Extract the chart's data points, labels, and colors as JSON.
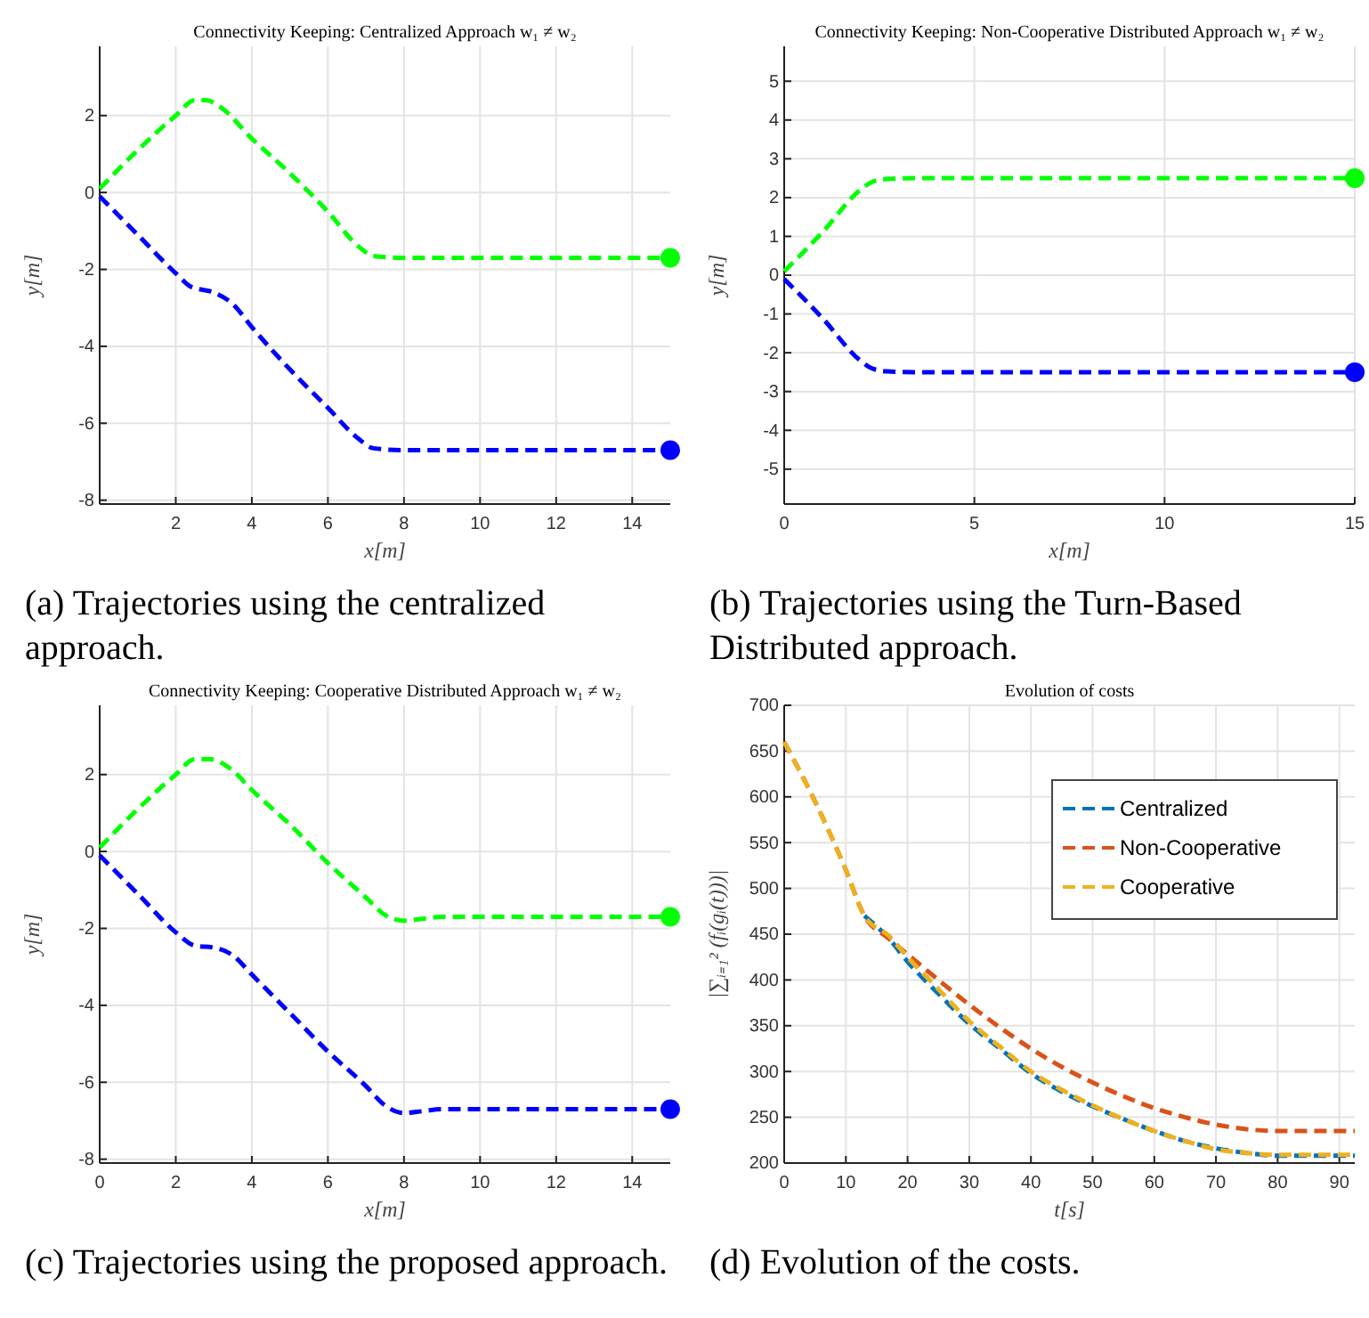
{
  "chart_data": [
    {
      "type": "line",
      "title": "Connectivity Keeping: Centralized Approach w₁ ≠ w₂",
      "xlabel": "x[m]",
      "ylabel": "y[m]",
      "xlim": [
        0,
        15
      ],
      "ylim": [
        -8.1,
        3.8
      ],
      "xticks": [
        2,
        4,
        6,
        8,
        10,
        12,
        14
      ],
      "yticks": [
        -8,
        -6,
        -4,
        -2,
        0,
        2
      ],
      "grid": true,
      "line_style": "dashed",
      "annotations": [
        "(a) Trajectories using the centralized approach."
      ],
      "series": [
        {
          "color": "#00ff00",
          "x": [
            0,
            1,
            2,
            2.5,
            2.8,
            3.2,
            4,
            5,
            6,
            6.8,
            7.2,
            8,
            15
          ],
          "values": [
            0.1,
            1.1,
            2.0,
            2.4,
            2.4,
            2.2,
            1.4,
            0.5,
            -0.5,
            -1.4,
            -1.65,
            -1.7,
            -1.7
          ]
        },
        {
          "color": "#0000ff",
          "x": [
            0,
            1,
            2,
            2.4,
            3,
            3.5,
            4,
            5,
            6,
            6.8,
            7.2,
            8,
            15
          ],
          "values": [
            -0.1,
            -1.1,
            -2.1,
            -2.45,
            -2.6,
            -2.9,
            -3.5,
            -4.6,
            -5.6,
            -6.4,
            -6.65,
            -6.7,
            -6.7
          ]
        },
        {
          "type": "scatter",
          "marker": "circle",
          "color": "#00ff00",
          "x": [
            15
          ],
          "values": [
            -1.7
          ]
        },
        {
          "type": "scatter",
          "marker": "circle",
          "color": "#0000ff",
          "x": [
            15
          ],
          "values": [
            -6.7
          ]
        }
      ]
    },
    {
      "type": "line",
      "title": "Connectivity Keeping: Non-Cooperative Distributed Approach w₁ ≠ w₂",
      "xlabel": "x[m]",
      "ylabel": "y[m]",
      "xlim": [
        0,
        15
      ],
      "ylim": [
        -5.9,
        5.9
      ],
      "xticks": [
        0,
        5,
        10,
        15
      ],
      "yticks": [
        -5,
        -4,
        -3,
        -2,
        -1,
        0,
        1,
        2,
        3,
        4,
        5
      ],
      "grid": true,
      "line_style": "dashed",
      "annotations": [
        "(b) Trajectories using the Turn-Based Distributed approach."
      ],
      "series": [
        {
          "color": "#00ff00",
          "x": [
            0,
            1,
            2,
            2.3,
            2.7,
            3.5,
            15
          ],
          "values": [
            0.1,
            1.1,
            2.2,
            2.4,
            2.48,
            2.5,
            2.5
          ]
        },
        {
          "color": "#0000ff",
          "x": [
            0,
            1,
            2,
            2.3,
            2.7,
            3.5,
            15
          ],
          "values": [
            -0.1,
            -1.1,
            -2.2,
            -2.4,
            -2.48,
            -2.5,
            -2.5
          ]
        },
        {
          "type": "scatter",
          "marker": "circle",
          "color": "#00ff00",
          "x": [
            15
          ],
          "values": [
            2.5
          ]
        },
        {
          "type": "scatter",
          "marker": "circle",
          "color": "#0000ff",
          "x": [
            15
          ],
          "values": [
            -2.5
          ]
        }
      ]
    },
    {
      "type": "line",
      "title": "Connectivity Keeping: Cooperative Distributed Approach w₁ ≠ w₂",
      "xlabel": "x[m]",
      "ylabel": "y[m]",
      "xlim": [
        0,
        15
      ],
      "ylim": [
        -8.1,
        3.8
      ],
      "xticks": [
        0,
        2,
        4,
        6,
        8,
        10,
        12,
        14
      ],
      "yticks": [
        -8,
        -6,
        -4,
        -2,
        0,
        2
      ],
      "grid": true,
      "line_style": "dashed",
      "annotations": [
        "(c) Trajectories using the proposed approach."
      ],
      "series": [
        {
          "color": "#00ff00",
          "x": [
            0,
            1,
            2,
            2.5,
            2.9,
            3.5,
            4,
            5,
            6,
            7,
            7.5,
            8,
            8.5,
            9,
            15
          ],
          "values": [
            0.1,
            1.1,
            2.0,
            2.4,
            2.4,
            2.1,
            1.6,
            0.7,
            -0.3,
            -1.2,
            -1.65,
            -1.8,
            -1.75,
            -1.7,
            -1.7
          ]
        },
        {
          "color": "#0000ff",
          "x": [
            0,
            1,
            2,
            2.5,
            3,
            3.5,
            4,
            5,
            6,
            7,
            7.5,
            8,
            8.5,
            9,
            15
          ],
          "values": [
            -0.1,
            -1.1,
            -2.1,
            -2.45,
            -2.5,
            -2.7,
            -3.2,
            -4.2,
            -5.2,
            -6.1,
            -6.6,
            -6.8,
            -6.75,
            -6.7,
            -6.7
          ]
        },
        {
          "type": "scatter",
          "marker": "circle",
          "color": "#00ff00",
          "x": [
            15
          ],
          "values": [
            -1.7
          ]
        },
        {
          "type": "scatter",
          "marker": "circle",
          "color": "#0000ff",
          "x": [
            15
          ],
          "values": [
            -6.7
          ]
        }
      ]
    },
    {
      "type": "line",
      "title": "Evolution of costs",
      "xlabel": "t[s]",
      "ylabel": "|∑ᵢ₌₁² (fᵢ(gᵢ(t)))|",
      "xlim": [
        0,
        92.5
      ],
      "ylim": [
        200,
        700
      ],
      "xticks": [
        0,
        10,
        20,
        30,
        40,
        50,
        60,
        70,
        80,
        90
      ],
      "yticks": [
        200,
        250,
        300,
        350,
        400,
        450,
        500,
        550,
        600,
        650,
        700
      ],
      "grid": true,
      "line_style": "dashed",
      "legend": "top right",
      "annotations": [
        "(d) Evolution of the costs."
      ],
      "series": [
        {
          "name": "Centralized",
          "color": "#0072bd",
          "x": [
            13,
            17,
            20,
            25,
            30,
            35,
            40,
            45,
            50,
            55,
            60,
            65,
            70,
            75,
            80,
            85,
            90,
            92.5
          ],
          "values": [
            470,
            445,
            420,
            385,
            352,
            325,
            298,
            278,
            262,
            248,
            235,
            224,
            216,
            211,
            208,
            208,
            208,
            208
          ]
        },
        {
          "name": "Non-Cooperative",
          "color": "#d95319",
          "x": [
            0,
            5,
            10,
            13,
            17,
            20,
            25,
            30,
            35,
            40,
            45,
            50,
            55,
            60,
            65,
            70,
            75,
            80,
            90,
            92.5
          ],
          "values": [
            660,
            595,
            520,
            470,
            445,
            428,
            400,
            373,
            348,
            325,
            305,
            288,
            273,
            260,
            250,
            242,
            237,
            235,
            235,
            235
          ]
        },
        {
          "name": "Cooperative",
          "color": "#edb120",
          "x": [
            0,
            5,
            10,
            13,
            17,
            20,
            25,
            30,
            35,
            40,
            45,
            50,
            55,
            60,
            65,
            70,
            75,
            80,
            90,
            92.5
          ],
          "values": [
            660,
            595,
            520,
            470,
            448,
            425,
            390,
            355,
            327,
            300,
            280,
            263,
            248,
            235,
            224,
            215,
            211,
            209,
            209,
            209
          ]
        }
      ]
    }
  ]
}
